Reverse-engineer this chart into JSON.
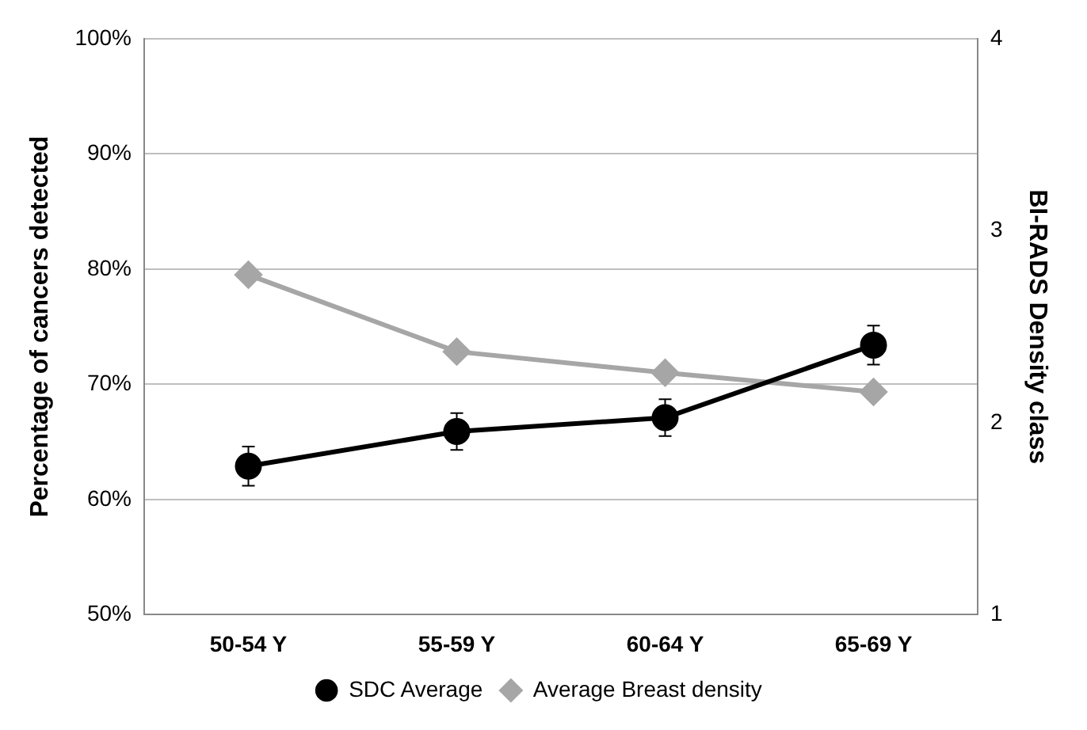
{
  "chart_data": {
    "type": "line",
    "ylabel": "Percentage of cancers detected",
    "y2label": "BI-RADS Density class",
    "categories": [
      "50-54 Y",
      "55-59 Y",
      "60-64 Y",
      "65-69 Y"
    ],
    "series": [
      {
        "name": "SDC Average",
        "color": "#000000",
        "values": [
          62.9,
          65.9,
          67.1,
          73.4
        ],
        "errors": [
          1.7,
          1.6,
          1.6,
          1.7
        ],
        "marker": "circle"
      },
      {
        "name": "Average Breast density",
        "color": "#a6a6a6",
        "values": [
          2.77,
          2.37,
          2.26,
          2.16
        ],
        "axis": "y2",
        "marker": "diamond"
      }
    ],
    "ylim": [
      50,
      100
    ],
    "yticks": [
      {
        "value": 50,
        "label": "50%"
      },
      {
        "value": 60,
        "label": "60%"
      },
      {
        "value": 70,
        "label": "70%"
      },
      {
        "value": 80,
        "label": "80%"
      },
      {
        "value": 90,
        "label": "90%"
      },
      {
        "value": 100,
        "label": "100%"
      }
    ],
    "y2lim": [
      1,
      4
    ],
    "y2ticks": [
      1,
      2,
      3,
      4
    ],
    "grid": "y",
    "legend": "bottom"
  }
}
